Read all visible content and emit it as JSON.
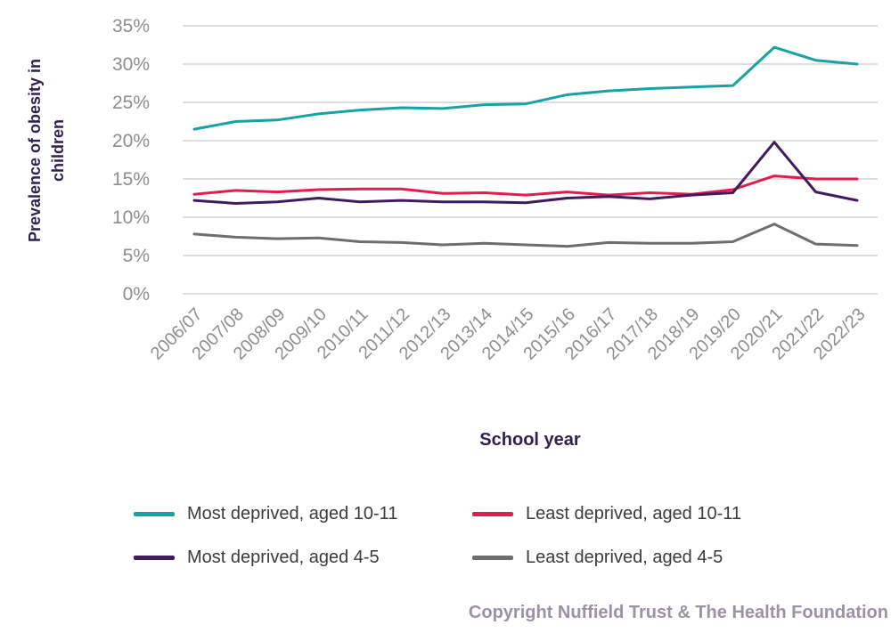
{
  "colors": {
    "teal": "#17a2a6",
    "crimson": "#e21c4e",
    "purple": "#421a5e",
    "gray": "#6e6e6e",
    "axis_text": "#8e8e8e",
    "grid": "#c9c9c9",
    "title_text": "#32204e",
    "legend_text": "#3b3b3b",
    "copyright_text": "#9b92a8"
  },
  "y_axis_title": {
    "line1": "Prevalence of obesity in",
    "line2": "children"
  },
  "x_axis_title": "School year",
  "copyright": "Copyright Nuffield Trust & The Health Foundation",
  "chart_data": {
    "type": "line",
    "title": "",
    "xlabel": "School year",
    "ylabel": "Prevalence of obesity in children",
    "ylim": [
      0,
      35
    ],
    "y_tick_step": 5,
    "y_tick_labels": [
      "0%",
      "5%",
      "10%",
      "15%",
      "20%",
      "25%",
      "30%",
      "35%"
    ],
    "grid": true,
    "legend_position": "bottom",
    "categories": [
      "2006/07",
      "2007/08",
      "2008/09",
      "2009/10",
      "2010/11",
      "2011/12",
      "2012/13",
      "2013/14",
      "2014/15",
      "2015/16",
      "2016/17",
      "2017/18",
      "2018/19",
      "2019/20",
      "2020/21",
      "2021/22",
      "2022/23"
    ],
    "series": [
      {
        "name": "Most deprived, aged 10-11",
        "color_key": "teal",
        "values": [
          21.5,
          22.5,
          22.7,
          23.5,
          24.0,
          24.3,
          24.2,
          24.7,
          24.8,
          26.0,
          26.5,
          26.8,
          27.0,
          27.2,
          32.2,
          30.5,
          30.0
        ]
      },
      {
        "name": "Least deprived, aged 10-11",
        "color_key": "crimson",
        "values": [
          13.0,
          13.5,
          13.3,
          13.6,
          13.7,
          13.7,
          13.1,
          13.2,
          12.9,
          13.3,
          12.9,
          13.2,
          13.0,
          13.6,
          15.4,
          15.0,
          15.0
        ]
      },
      {
        "name": "Most deprived, aged 4-5",
        "color_key": "purple",
        "values": [
          12.2,
          11.8,
          12.0,
          12.5,
          12.0,
          12.2,
          12.0,
          12.0,
          11.9,
          12.5,
          12.7,
          12.4,
          12.9,
          13.2,
          19.8,
          13.3,
          12.2
        ]
      },
      {
        "name": "Least deprived, aged 4-5",
        "color_key": "gray",
        "values": [
          7.8,
          7.4,
          7.2,
          7.3,
          6.8,
          6.7,
          6.4,
          6.6,
          6.4,
          6.2,
          6.7,
          6.6,
          6.6,
          6.8,
          9.1,
          6.5,
          6.3
        ]
      }
    ]
  }
}
